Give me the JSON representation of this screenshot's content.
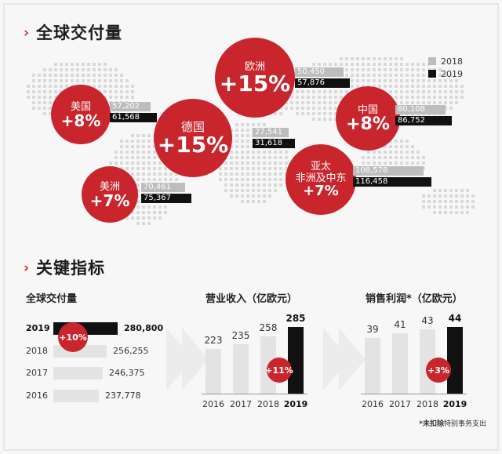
{
  "sections": {
    "global_deliveries_title": "全球交付量",
    "key_indicators_title": "关键指标",
    "chevron": "›"
  },
  "legend": [
    {
      "label": "2018",
      "color": "#bdbdbd"
    },
    {
      "label": "2019",
      "color": "#111111"
    }
  ],
  "regions": [
    {
      "name": "美国",
      "growth": "+8%",
      "v2018": "57,202",
      "v2019": "61,568"
    },
    {
      "name": "欧洲",
      "growth": "+15%",
      "v2018": "50,450",
      "v2019": "57,876"
    },
    {
      "name": "德国",
      "growth": "+15%",
      "v2018": "27,541",
      "v2019": "31,618"
    },
    {
      "name": "中国",
      "growth": "+8%",
      "v2018": "80,108",
      "v2019": "86,752"
    },
    {
      "name": "美洲",
      "growth": "+7%",
      "v2018": "70,461",
      "v2019": "75,367"
    },
    {
      "name": "亚太\n非洲及中东",
      "growth": "+7%",
      "v2018": "108,578",
      "v2019": "116,458"
    }
  ],
  "chart_data": [
    {
      "type": "bar",
      "title": "全球交付量",
      "categories": [
        "2019",
        "2018",
        "2017",
        "2016"
      ],
      "values": [
        280800,
        256255,
        246375,
        237778
      ],
      "labels": [
        "280,800",
        "256,255",
        "246,375",
        "237,778"
      ],
      "annotation": "+10%"
    },
    {
      "type": "bar",
      "title": "营业收入（亿欧元）",
      "categories": [
        "2016",
        "2017",
        "2018",
        "2019"
      ],
      "values": [
        223,
        235,
        258,
        285
      ],
      "annotation": "+11%"
    },
    {
      "type": "bar",
      "title": "销售利润*（亿欧元）",
      "categories": [
        "2016",
        "2017",
        "2018",
        "2019"
      ],
      "values": [
        39,
        41,
        43,
        44
      ],
      "annotation": "+3%"
    }
  ],
  "footnote": {
    "bold": "*未扣除",
    "rest": "特别事务支出"
  }
}
